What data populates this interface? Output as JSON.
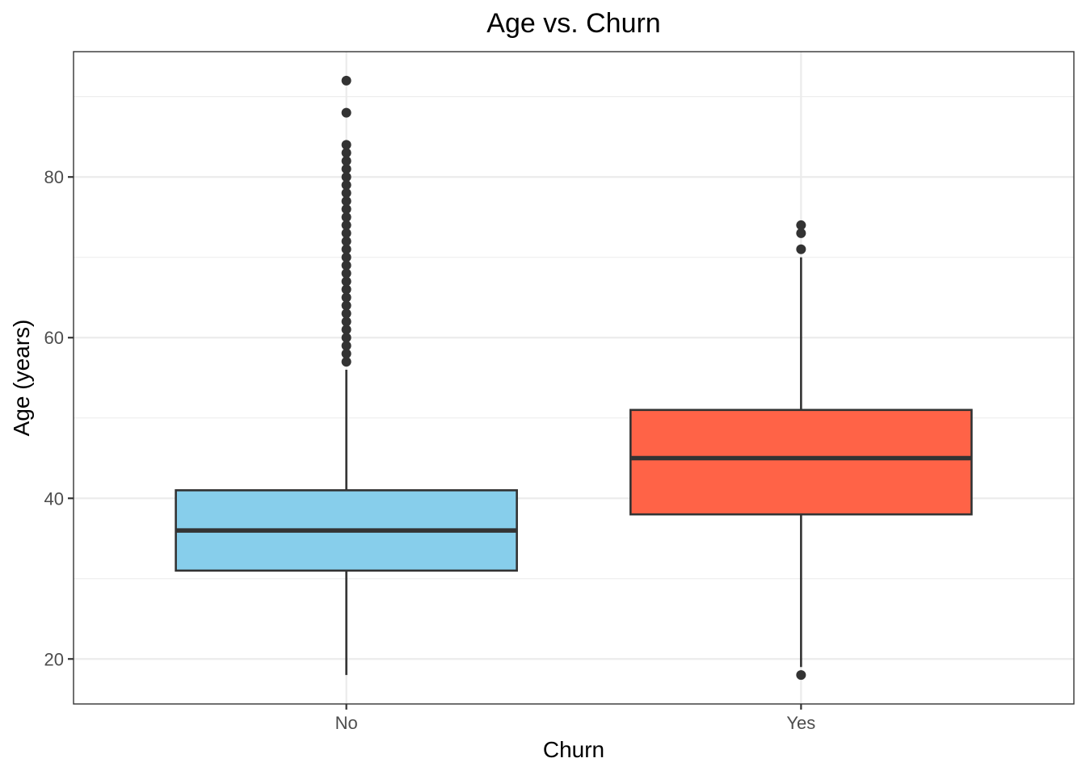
{
  "chart_data": {
    "type": "boxplot",
    "title": "Age vs. Churn",
    "xlabel": "Churn",
    "ylabel": "Age (years)",
    "categories": [
      "No",
      "Yes"
    ],
    "ylim": [
      14.4,
      95.6
    ],
    "y_ticks": [
      20,
      40,
      60,
      80
    ],
    "y_minor_ticks": [
      30,
      50,
      70,
      90
    ],
    "grid": true,
    "boxes": [
      {
        "category": "No",
        "fill": "#87CEEB",
        "whisker_low": 18,
        "q1": 31,
        "median": 36,
        "q3": 41,
        "whisker_high": 56,
        "outliers": [
          57,
          58,
          59,
          60,
          61,
          62,
          63,
          64,
          65,
          66,
          67,
          68,
          69,
          70,
          71,
          72,
          73,
          74,
          75,
          76,
          77,
          78,
          79,
          80,
          81,
          82,
          83,
          84,
          88,
          92
        ]
      },
      {
        "category": "Yes",
        "fill": "#FF6347",
        "whisker_low": 19,
        "q1": 38,
        "median": 45,
        "q3": 51,
        "whisker_high": 70,
        "outliers": [
          18,
          71,
          73,
          74
        ]
      }
    ]
  }
}
